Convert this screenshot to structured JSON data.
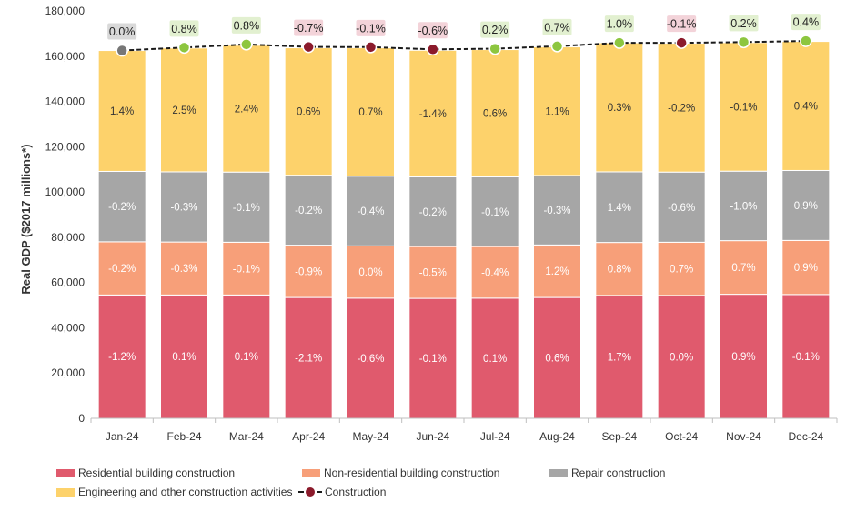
{
  "chart_data": {
    "type": "bar",
    "ylabel": "Real GDP ($2017 millions*)",
    "ylim": [
      0,
      180000
    ],
    "yticks": [
      "0",
      "20,000",
      "40,000",
      "60,000",
      "80,000",
      "100,000",
      "120,000",
      "140,000",
      "160,000",
      "180,000"
    ],
    "categories": [
      "Jan-24",
      "Feb-24",
      "Mar-24",
      "Apr-24",
      "May-24",
      "Jun-24",
      "Jul-24",
      "Aug-24",
      "Sep-24",
      "Oct-24",
      "Nov-24",
      "Dec-24"
    ],
    "series": [
      {
        "name": "Residential building construction",
        "color": "#e05a6d",
        "values": [
          54500,
          54500,
          54500,
          53400,
          53100,
          53000,
          53100,
          53400,
          54300,
          54300,
          54800,
          54700
        ],
        "labels": [
          "-1.2%",
          "0.1%",
          "0.1%",
          "-2.1%",
          "-0.6%",
          "-0.1%",
          "0.1%",
          "0.6%",
          "1.7%",
          "0.0%",
          "0.9%",
          "-0.1%"
        ]
      },
      {
        "name": "Non-residential building construction",
        "color": "#f79f79",
        "values": [
          23500,
          23400,
          23300,
          23100,
          23100,
          22900,
          22800,
          23200,
          23400,
          23500,
          23700,
          23900
        ],
        "labels": [
          "-0.2%",
          "-0.3%",
          "-0.1%",
          "-0.9%",
          "0.0%",
          "-0.5%",
          "-0.4%",
          "1.2%",
          "0.8%",
          "0.7%",
          "0.7%",
          "0.9%"
        ]
      },
      {
        "name": "Repair construction",
        "color": "#a6a6a6",
        "values": [
          31100,
          31000,
          31000,
          30900,
          30800,
          30800,
          30800,
          30700,
          31200,
          31000,
          30700,
          30900
        ],
        "labels": [
          "-0.2%",
          "-0.3%",
          "-0.1%",
          "-0.2%",
          "-0.4%",
          "-0.2%",
          "-0.1%",
          "-0.3%",
          "1.4%",
          "-0.6%",
          "-1.0%",
          "0.9%"
        ]
      },
      {
        "name": "Engineering and other construction activities",
        "color": "#fdd26b",
        "values": [
          53400,
          54700,
          56000,
          56300,
          56700,
          55900,
          56200,
          56800,
          57000,
          56900,
          56800,
          57000
        ],
        "labels": [
          "1.4%",
          "2.5%",
          "2.4%",
          "0.6%",
          "0.7%",
          "-1.4%",
          "0.6%",
          "1.1%",
          "0.3%",
          "-0.2%",
          "-0.1%",
          "0.4%"
        ]
      }
    ],
    "line": {
      "name": "Construction",
      "values": [
        162500,
        163800,
        165200,
        164100,
        164000,
        163000,
        163300,
        164400,
        165900,
        165900,
        166200,
        166700
      ],
      "labels": [
        "0.0%",
        "0.8%",
        "0.8%",
        "-0.7%",
        "-0.1%",
        "-0.6%",
        "0.2%",
        "0.7%",
        "1.0%",
        "-0.1%",
        "0.2%",
        "0.4%"
      ],
      "line_color": "#1a1a1a",
      "marker_positive": "#8dc63f",
      "marker_negative": "#8b1a2b",
      "marker_zero": "#777777",
      "label_bg_positive": "#e2f0d0",
      "label_bg_negative": "#f3d3d9",
      "label_bg_zero": "#d9d9d9"
    },
    "grid": false,
    "legend_position": "bottom"
  },
  "legend": {
    "items": [
      {
        "label": "Residential building construction",
        "color": "#e05a6d",
        "kind": "bar"
      },
      {
        "label": "Non-residential building construction",
        "color": "#f79f79",
        "kind": "bar"
      },
      {
        "label": "Repair construction",
        "color": "#a6a6a6",
        "kind": "bar"
      },
      {
        "label": "Engineering and other construction activities",
        "color": "#fdd26b",
        "kind": "bar"
      },
      {
        "label": "Construction",
        "color": "#8b1a2b",
        "kind": "line"
      }
    ]
  }
}
